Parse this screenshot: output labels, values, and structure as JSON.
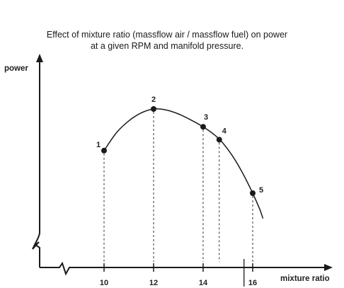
{
  "chart_data": {
    "type": "line",
    "title_lines": [
      "Effect of mixture ratio (massflow air / massflow fuel) on power",
      "at a given RPM and manifold pressure."
    ],
    "xlabel": "mixture ratio",
    "ylabel": "power",
    "x_ticks": [
      "10",
      "12",
      "14",
      "16"
    ],
    "xlim": [
      8.0,
      18.5
    ],
    "x_axis_break": true,
    "y_axis_break": true,
    "y_tick_labels": false,
    "grid": false,
    "curve": {
      "x": [
        10.0,
        10.5,
        11.0,
        11.5,
        12.0,
        12.5,
        13.0,
        13.5,
        14.0,
        14.4,
        14.75,
        15.2,
        15.6,
        16.0,
        16.3
      ],
      "y": [
        59,
        68,
        74,
        78,
        80,
        79.5,
        77.5,
        74.5,
        71,
        67.5,
        63.5,
        56,
        47.5,
        37.5,
        29
      ]
    },
    "points": [
      {
        "label": "1",
        "x": 10.0,
        "y": 59
      },
      {
        "label": "2",
        "x": 12.0,
        "y": 80
      },
      {
        "label": "3",
        "x": 14.0,
        "y": 71
      },
      {
        "label": "4",
        "x": 14.65,
        "y": 64.5
      },
      {
        "label": "5",
        "x": 16.0,
        "y": 37.5
      }
    ],
    "dashed_dropline_x": [
      10.0,
      12.0,
      14.0,
      14.65,
      16.0
    ],
    "marker_tick_x": 15.65,
    "colors": {
      "line": "#1a1a1a",
      "marker": "#1a1a1a",
      "text": "#222222"
    }
  }
}
